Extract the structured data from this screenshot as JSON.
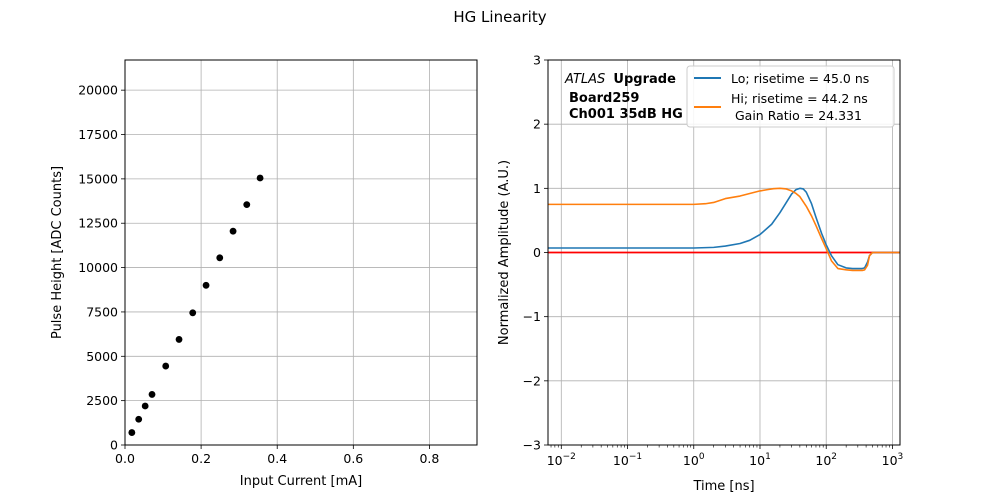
{
  "figure_title": "HG Linearity",
  "chart_data": [
    {
      "type": "scatter",
      "xlabel": "Input Current [mA]",
      "ylabel": "Pulse Height [ADC Counts]",
      "xlim": [
        0.0,
        0.925
      ],
      "ylim": [
        0,
        21700
      ],
      "xticks": [
        0.0,
        0.2,
        0.4,
        0.6,
        0.8
      ],
      "xtick_labels": [
        "0.0",
        "0.2",
        "0.4",
        "0.6",
        "0.8"
      ],
      "yticks": [
        0,
        2500,
        5000,
        7500,
        10000,
        12500,
        15000,
        17500,
        20000
      ],
      "ytick_labels": [
        "0",
        "2500",
        "5000",
        "7500",
        "10000",
        "12500",
        "15000",
        "17500",
        "20000"
      ],
      "grid": true,
      "marker_color": "#000000",
      "x": [
        0.018,
        0.036,
        0.053,
        0.071,
        0.107,
        0.142,
        0.178,
        0.213,
        0.249,
        0.284,
        0.32,
        0.355
      ],
      "y": [
        700,
        1450,
        2200,
        2850,
        4450,
        5950,
        7450,
        9000,
        10550,
        12050,
        13550,
        15050
      ]
    },
    {
      "type": "line",
      "xlabel": "Time [ns]",
      "ylabel": "Normalized Amplitude (A.U.)",
      "xscale": "log",
      "xlim": [
        0.0063,
        1300
      ],
      "ylim": [
        -3,
        3
      ],
      "xtick_exponents": [
        "−2",
        "−1",
        "0",
        "1",
        "2",
        "3"
      ],
      "yticks": [
        -3,
        -2,
        -1,
        0,
        1,
        2,
        3
      ],
      "ytick_labels": [
        "−3",
        "−2",
        "−1",
        "0",
        "1",
        "2",
        "3"
      ],
      "grid": true,
      "legend_position": "top-right",
      "annotation": {
        "italic": "ATLAS",
        "bold": "Upgrade",
        "line2": "Board259",
        "line3": "Ch001 35dB HG"
      },
      "legend": {
        "lo": "Lo; risetime = 45.0 ns",
        "hi": "Hi; risetime = 44.2 ns",
        "ratio": " Gain Ratio = 24.331"
      },
      "reference_line": {
        "y": 0,
        "color": "#ff0000"
      },
      "series": [
        {
          "name": "Lo; risetime = 45.0 ns",
          "color": "#1f77b4",
          "x": [
            0.0063,
            0.01,
            0.1,
            1,
            2,
            3,
            5,
            7,
            10,
            15,
            20,
            25,
            30,
            35,
            40,
            45,
            50,
            60,
            70,
            85,
            100,
            120,
            150,
            200,
            250,
            300,
            350,
            380,
            420,
            450,
            500,
            600,
            800,
            1000,
            1300
          ],
          "y": [
            0.07,
            0.07,
            0.07,
            0.07,
            0.08,
            0.1,
            0.14,
            0.19,
            0.28,
            0.44,
            0.62,
            0.78,
            0.91,
            0.98,
            1.0,
            0.99,
            0.94,
            0.76,
            0.55,
            0.3,
            0.12,
            -0.05,
            -0.19,
            -0.24,
            -0.25,
            -0.25,
            -0.25,
            -0.24,
            -0.15,
            -0.05,
            0.0,
            0.0,
            0.0,
            0.0,
            0.0
          ]
        },
        {
          "name": "Hi; risetime = 44.2 ns",
          "color": "#ff7f0e",
          "x": [
            0.0063,
            0.01,
            0.1,
            1,
            1.5,
            2,
            3,
            5,
            7,
            10,
            13,
            16,
            20,
            25,
            30,
            35,
            40,
            50,
            60,
            70,
            85,
            100,
            120,
            150,
            200,
            250,
            300,
            350,
            380,
            420,
            450,
            500,
            600,
            800,
            1000,
            1300
          ],
          "y": [
            0.75,
            0.75,
            0.75,
            0.75,
            0.76,
            0.78,
            0.84,
            0.88,
            0.92,
            0.96,
            0.98,
            0.995,
            1.0,
            0.99,
            0.96,
            0.92,
            0.87,
            0.72,
            0.57,
            0.42,
            0.22,
            0.06,
            -0.13,
            -0.25,
            -0.27,
            -0.28,
            -0.28,
            -0.28,
            -0.27,
            -0.2,
            -0.05,
            0.0,
            0.0,
            0.0,
            0.0,
            0.0
          ]
        }
      ]
    }
  ]
}
